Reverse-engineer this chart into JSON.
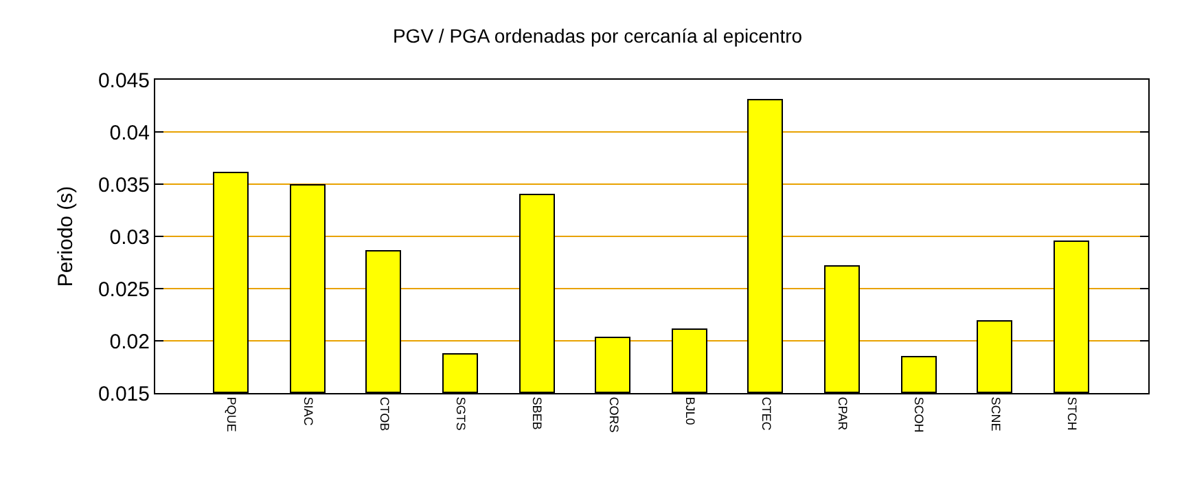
{
  "chart_data": {
    "type": "bar",
    "title": "PGV / PGA ordenadas por cercanía al epicentro",
    "ylabel": "Periodo (s)",
    "categories": [
      "PQUE",
      "SIAC",
      "CTOB",
      "SGTS",
      "SBEB",
      "CORS",
      "BJL0",
      "CTEC",
      "CPAR",
      "SCOH",
      "SCNE",
      "STCH"
    ],
    "values": [
      0.0361,
      0.0349,
      0.0286,
      0.0187,
      0.0339,
      0.0202,
      0.021,
      0.043,
      0.0271,
      0.0184,
      0.0218,
      0.0295
    ],
    "color": "#ffff00",
    "ylim": [
      0.015,
      0.045
    ],
    "yticks": [
      0.015,
      0.02,
      0.025,
      0.03,
      0.035,
      0.04,
      0.045
    ],
    "grid": "y",
    "legend": false
  }
}
